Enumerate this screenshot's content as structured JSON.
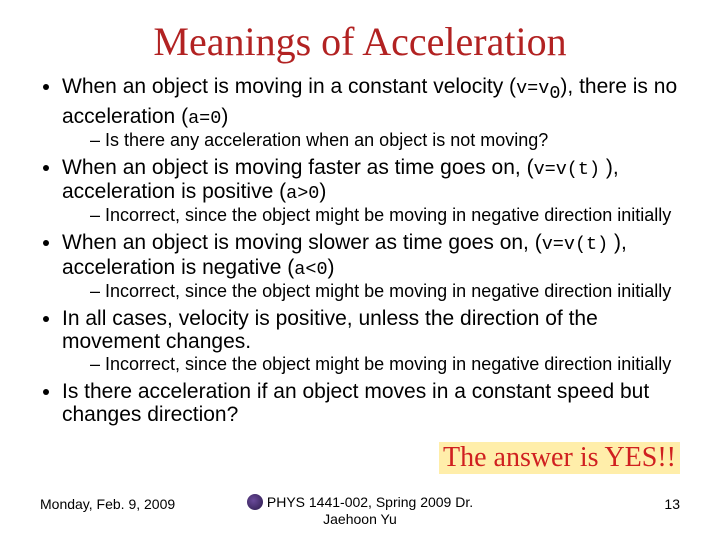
{
  "title": "Meanings of Acceleration",
  "bullets": {
    "b1_pre": "When an object is moving in a constant velocity (",
    "b1_mono": "v=v",
    "b1_sub": "0",
    "b1_mid": "), there is no acceleration (",
    "b1_mono2": "a=0",
    "b1_post": ")",
    "b1_sub1": "Is there any acceleration when an object is not moving?",
    "b2_pre": "When an object is moving faster as time goes on, (",
    "b2_mono": "v=v(t)",
    "b2_mid": " ), acceleration is positive (",
    "b2_mono2": "a>0",
    "b2_post": ")",
    "b2_sub1": "Incorrect, since the object might be moving in negative direction initially",
    "b3_pre": "When an object is moving slower as time goes on, (",
    "b3_mono": "v=v(t)",
    "b3_mid": " ), acceleration is negative (",
    "b3_mono2": "a<0",
    "b3_post": ")",
    "b3_sub1": "Incorrect, since the object might be moving in negative direction initially",
    "b4": "In all cases, velocity is positive, unless the direction of the movement changes.",
    "b4_sub1": "Incorrect, since the object might be moving in negative direction initially",
    "b5": "Is there acceleration if an object moves in a constant speed but changes direction?"
  },
  "answer": "The answer is YES!!",
  "footer": {
    "date": "Monday, Feb. 9, 2009",
    "center1": "PHYS 1441-002, Spring 2009 Dr.",
    "center2": "Jaehoon Yu",
    "page": "13"
  },
  "colors": {
    "title": "#b22222",
    "answer_bg": "#ffeeaa",
    "answer_fg": "#d02020",
    "text": "#000000",
    "bg": "#ffffff"
  }
}
